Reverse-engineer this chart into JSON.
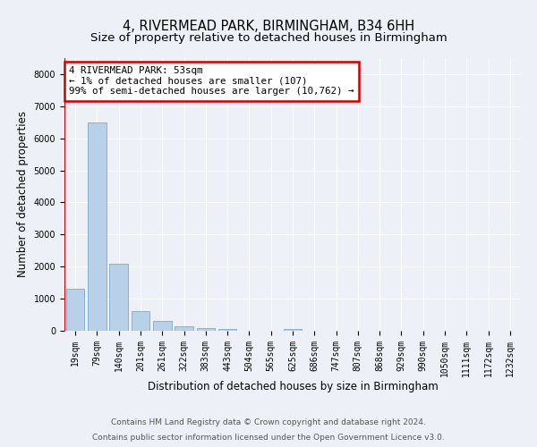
{
  "title": "4, RIVERMEAD PARK, BIRMINGHAM, B34 6HH",
  "subtitle": "Size of property relative to detached houses in Birmingham",
  "xlabel": "Distribution of detached houses by size in Birmingham",
  "ylabel": "Number of detached properties",
  "categories": [
    "19sqm",
    "79sqm",
    "140sqm",
    "201sqm",
    "261sqm",
    "322sqm",
    "383sqm",
    "443sqm",
    "504sqm",
    "565sqm",
    "625sqm",
    "686sqm",
    "747sqm",
    "807sqm",
    "868sqm",
    "929sqm",
    "990sqm",
    "1050sqm",
    "1111sqm",
    "1172sqm",
    "1232sqm"
  ],
  "values": [
    1300,
    6500,
    2100,
    600,
    300,
    150,
    80,
    50,
    0,
    0,
    60,
    0,
    0,
    0,
    0,
    0,
    0,
    0,
    0,
    0,
    0
  ],
  "bar_color": "#b8d0e8",
  "bar_edge_color": "#7aaac8",
  "annotation_box_text": "4 RIVERMEAD PARK: 53sqm\n← 1% of detached houses are smaller (107)\n99% of semi-detached houses are larger (10,762) →",
  "annotation_box_color": "#ffffff",
  "annotation_box_edge_color": "#cc0000",
  "marker_line_color": "#cc0000",
  "ylim": [
    0,
    8500
  ],
  "yticks": [
    0,
    1000,
    2000,
    3000,
    4000,
    5000,
    6000,
    7000,
    8000
  ],
  "footer_line1": "Contains HM Land Registry data © Crown copyright and database right 2024.",
  "footer_line2": "Contains public sector information licensed under the Open Government Licence v3.0.",
  "background_color": "#edf1f7",
  "plot_background_color": "#edf1f7",
  "grid_color": "#ffffff",
  "title_fontsize": 10.5,
  "subtitle_fontsize": 9.5,
  "axis_label_fontsize": 8.5,
  "tick_fontsize": 7,
  "footer_fontsize": 6.5
}
